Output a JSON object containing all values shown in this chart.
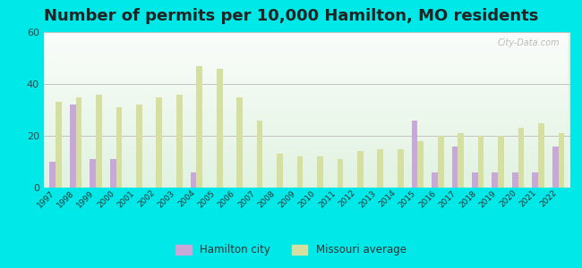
{
  "title": "Number of permits per 10,000 Hamilton, MO residents",
  "years": [
    1997,
    1998,
    1999,
    2000,
    2001,
    2002,
    2003,
    2004,
    2005,
    2006,
    2007,
    2008,
    2009,
    2010,
    2011,
    2012,
    2013,
    2014,
    2015,
    2016,
    2017,
    2018,
    2019,
    2020,
    2021,
    2022
  ],
  "hamilton": [
    10,
    32,
    11,
    11,
    0,
    0,
    0,
    6,
    0,
    0,
    0,
    0,
    0,
    0,
    0,
    0,
    0,
    0,
    26,
    6,
    16,
    6,
    6,
    6,
    6,
    16
  ],
  "missouri": [
    33,
    35,
    36,
    31,
    32,
    35,
    36,
    47,
    46,
    35,
    26,
    13,
    12,
    12,
    11,
    14,
    15,
    15,
    18,
    20,
    21,
    20,
    20,
    23,
    25,
    21
  ],
  "hamilton_color": "#c8a8d8",
  "missouri_color": "#d4dfa0",
  "background_top": "#edfaf4",
  "background_bottom": "#d8f0dc",
  "outer_background": "#00e8e8",
  "ylim": [
    0,
    60
  ],
  "yticks": [
    0,
    20,
    40,
    60
  ],
  "title_fontsize": 13,
  "legend_hamilton": "Hamilton city",
  "legend_missouri": "Missouri average"
}
